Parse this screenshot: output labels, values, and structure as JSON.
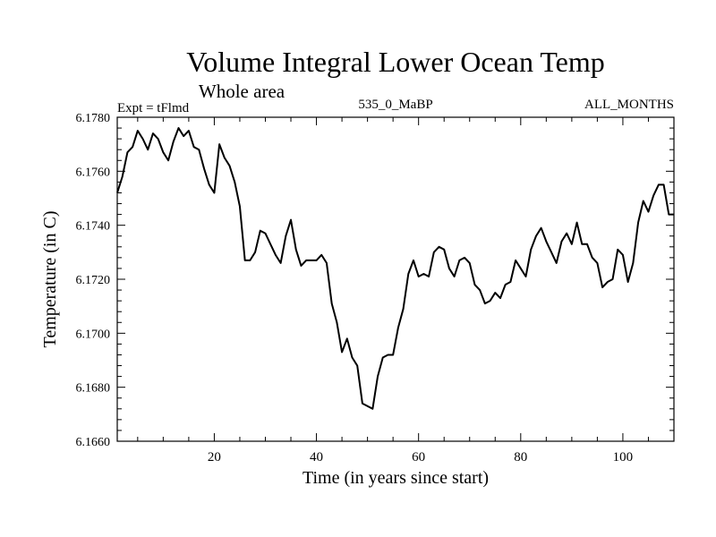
{
  "chart_data": {
    "type": "line",
    "title": "Volume Integral Lower Ocean Temp",
    "subtitle": "Whole area",
    "left_label": "Expt = tFlmd",
    "center_label": "535_0_MaBP",
    "right_label": "ALL_MONTHS",
    "xlabel": "Time (in years since start)",
    "ylabel": "Temperature (in C)",
    "xlim": [
      1,
      110
    ],
    "ylim": [
      6.166,
      6.178
    ],
    "xticks": [
      20,
      40,
      60,
      80,
      100
    ],
    "xtick_labels": [
      "20",
      "40",
      "60",
      "80",
      "100"
    ],
    "yticks": [
      6.166,
      6.168,
      6.17,
      6.172,
      6.174,
      6.176,
      6.178
    ],
    "ytick_labels": [
      "6.1660",
      "6.1680",
      "6.1700",
      "6.1720",
      "6.1740",
      "6.1760",
      "6.1780"
    ],
    "grid": false,
    "series": [
      {
        "name": "Lower Ocean Temp",
        "x": [
          1,
          2,
          3,
          4,
          5,
          6,
          7,
          8,
          9,
          10,
          11,
          12,
          13,
          14,
          15,
          16,
          17,
          18,
          19,
          20,
          21,
          22,
          23,
          24,
          25,
          26,
          27,
          28,
          29,
          30,
          31,
          32,
          33,
          34,
          35,
          36,
          37,
          38,
          39,
          40,
          41,
          42,
          43,
          44,
          45,
          46,
          47,
          48,
          49,
          50,
          51,
          52,
          53,
          54,
          55,
          56,
          57,
          58,
          59,
          60,
          61,
          62,
          63,
          64,
          65,
          66,
          67,
          68,
          69,
          70,
          71,
          72,
          73,
          74,
          75,
          76,
          77,
          78,
          79,
          80,
          81,
          82,
          83,
          84,
          85,
          86,
          87,
          88,
          89,
          90,
          91,
          92,
          93,
          94,
          95,
          96,
          97,
          98,
          99,
          100,
          101,
          102,
          103,
          104,
          105,
          106,
          107,
          108,
          109,
          110
        ],
        "values": [
          6.1752,
          6.1758,
          6.1767,
          6.1769,
          6.1775,
          6.1772,
          6.1768,
          6.1774,
          6.1772,
          6.1767,
          6.1764,
          6.1771,
          6.1776,
          6.1773,
          6.1775,
          6.1769,
          6.1768,
          6.1761,
          6.1755,
          6.1752,
          6.177,
          6.1765,
          6.1762,
          6.1756,
          6.1747,
          6.1727,
          6.1727,
          6.173,
          6.1738,
          6.1737,
          6.1733,
          6.1729,
          6.1726,
          6.1736,
          6.1742,
          6.1731,
          6.1725,
          6.1727,
          6.1727,
          6.1727,
          6.1729,
          6.1726,
          6.1711,
          6.1704,
          6.1693,
          6.1698,
          6.1691,
          6.1688,
          6.1674,
          6.1673,
          6.1672,
          6.1684,
          6.1691,
          6.1692,
          6.1692,
          6.1702,
          6.1709,
          6.1722,
          6.1727,
          6.1721,
          6.1722,
          6.1721,
          6.173,
          6.1732,
          6.1731,
          6.1724,
          6.1721,
          6.1727,
          6.1728,
          6.1726,
          6.1718,
          6.1716,
          6.1711,
          6.1712,
          6.1715,
          6.1713,
          6.1718,
          6.1719,
          6.1727,
          6.1724,
          6.1721,
          6.1731,
          6.1736,
          6.1739,
          6.1734,
          6.173,
          6.1726,
          6.1734,
          6.1737,
          6.1733,
          6.1741,
          6.1733,
          6.1733,
          6.1728,
          6.1726,
          6.1717,
          6.1719,
          6.172,
          6.1731,
          6.1729,
          6.1719,
          6.1726,
          6.1741,
          6.1749,
          6.1745,
          6.1751,
          6.1755,
          6.1755,
          6.1744,
          6.1744
        ]
      }
    ]
  }
}
